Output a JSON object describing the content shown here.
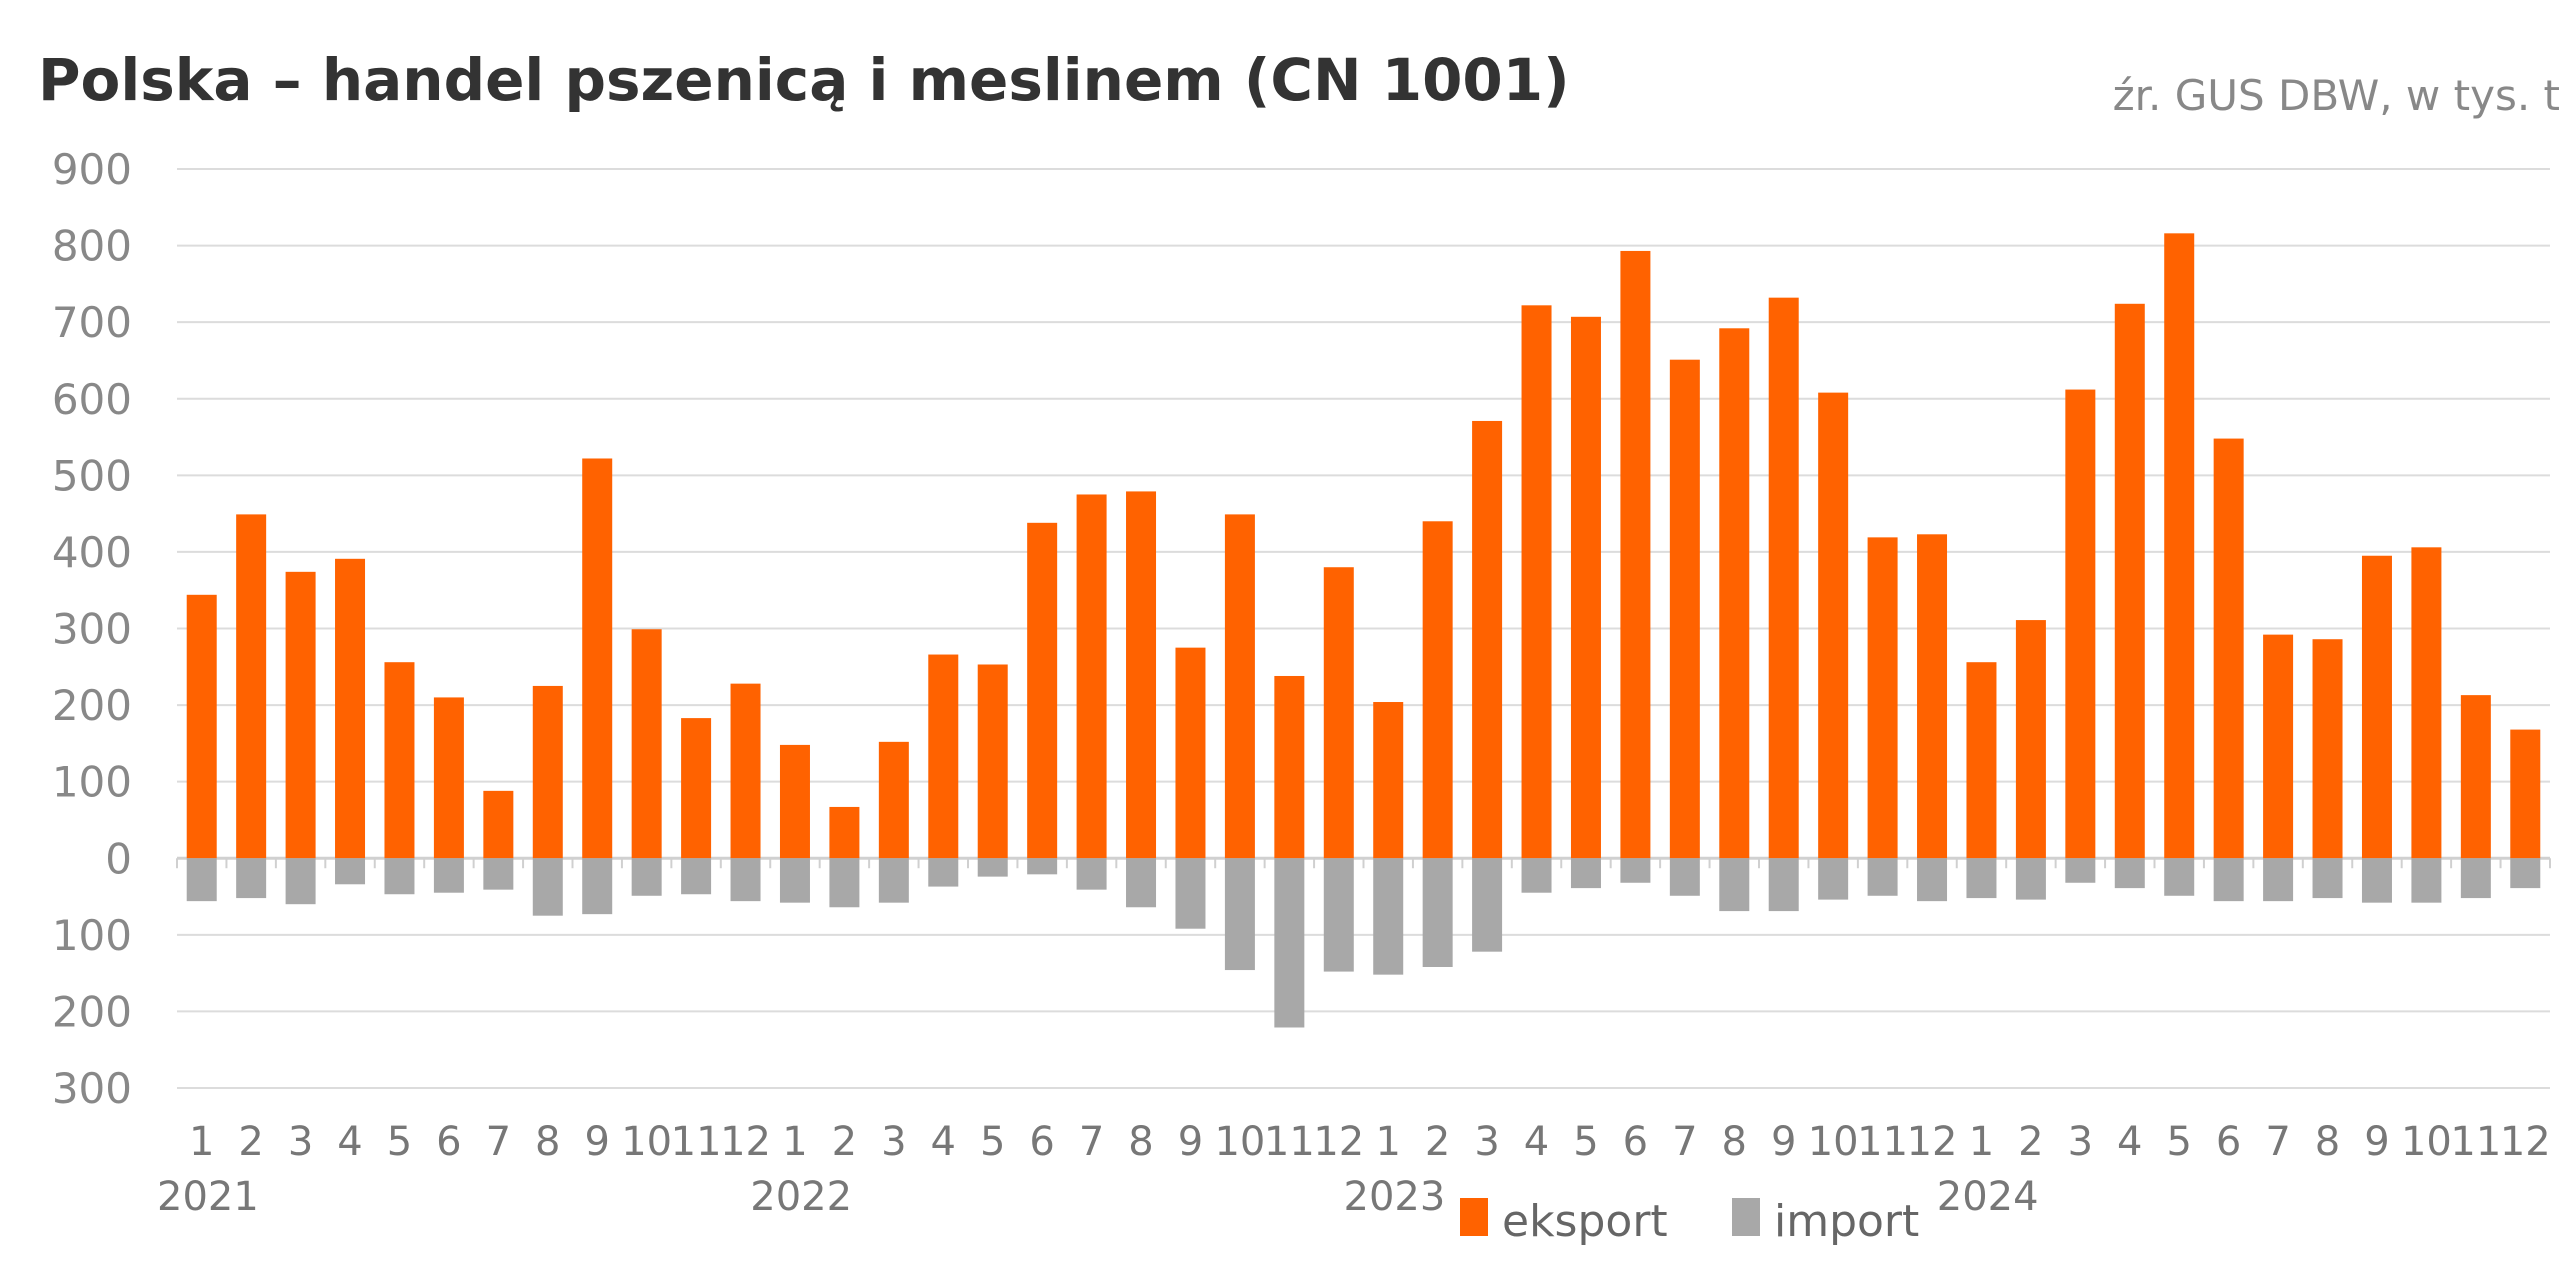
{
  "chart_data": {
    "type": "bar",
    "title": "Polska – handel pszenicą i meslinem (CN 1001)",
    "source": "źr. GUS DBW, w tys. t",
    "ylim": [
      -300,
      900
    ],
    "yticks": [
      900,
      800,
      700,
      600,
      500,
      400,
      300,
      200,
      100,
      0,
      -100,
      -200,
      -300
    ],
    "ytick_labels": [
      "900",
      "800",
      "700",
      "600",
      "500",
      "400",
      "300",
      "200",
      "100",
      "0",
      "100",
      "200",
      "300"
    ],
    "grid": true,
    "legend_position": "bottom-center",
    "years": [
      "2021",
      "2022",
      "2023",
      "2024"
    ],
    "months": [
      "1",
      "2",
      "3",
      "4",
      "5",
      "6",
      "7",
      "8",
      "9",
      "10",
      "11",
      "12"
    ],
    "series": [
      {
        "name": "eksport",
        "color": "#FF6200",
        "values": [
          344,
          449,
          374,
          391,
          256,
          210,
          88,
          225,
          522,
          299,
          183,
          228,
          148,
          67,
          152,
          266,
          253,
          438,
          475,
          479,
          275,
          449,
          238,
          380,
          204,
          440,
          571,
          722,
          707,
          793,
          651,
          692,
          732,
          608,
          419,
          423,
          256,
          311,
          612,
          724,
          816,
          548,
          292,
          286,
          395,
          406,
          213,
          168
        ]
      },
      {
        "name": "import",
        "color": "#A8A8A8",
        "values": [
          -56,
          -52,
          -60,
          -34,
          -47,
          -45,
          -41,
          -75,
          -73,
          -49,
          -47,
          -56,
          -58,
          -64,
          -58,
          -37,
          -24,
          -21,
          -41,
          -64,
          -92,
          -146,
          -221,
          -148,
          -152,
          -142,
          -122,
          -45,
          -39,
          -32,
          -49,
          -69,
          -69,
          -54,
          -49,
          -56,
          -52,
          -54,
          -32,
          -39,
          -49,
          -56,
          -56,
          -52,
          -58,
          -58,
          -52,
          -39
        ]
      }
    ]
  }
}
